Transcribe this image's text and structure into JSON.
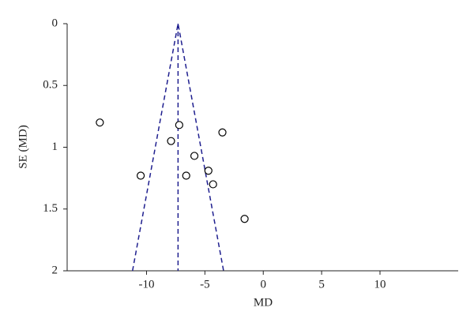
{
  "chart_data": {
    "type": "scatter",
    "x_label": "MD",
    "y_label": "SE (MD)",
    "series": [
      {
        "color": "#000000",
        "x": [
          -14.0,
          -7.2,
          -3.5,
          -7.9,
          -5.9,
          -10.5,
          -6.6,
          -4.7,
          -4.3,
          -1.6
        ],
        "values": [
          0.8,
          0.82,
          0.88,
          0.95,
          1.07,
          1.23,
          1.23,
          1.19,
          1.3,
          1.58
        ]
      }
    ],
    "funnel_lines": {
      "color": "#1f1f8f",
      "lines": [
        {
          "x": [
            -11.2,
            -7.3,
            -3.4
          ],
          "y": [
            2,
            0,
            2
          ]
        },
        {
          "x": [
            -7.3,
            -7.3
          ],
          "y": [
            0,
            2
          ]
        }
      ]
    },
    "xlim": [
      -16.8,
      16.7
    ],
    "xticks": [
      -10,
      -5,
      0,
      5,
      10
    ],
    "ylim": [
      2,
      0
    ],
    "yticks": [
      0,
      0.5,
      1,
      1.5,
      2
    ],
    "y_inverted": true,
    "grid": false
  }
}
